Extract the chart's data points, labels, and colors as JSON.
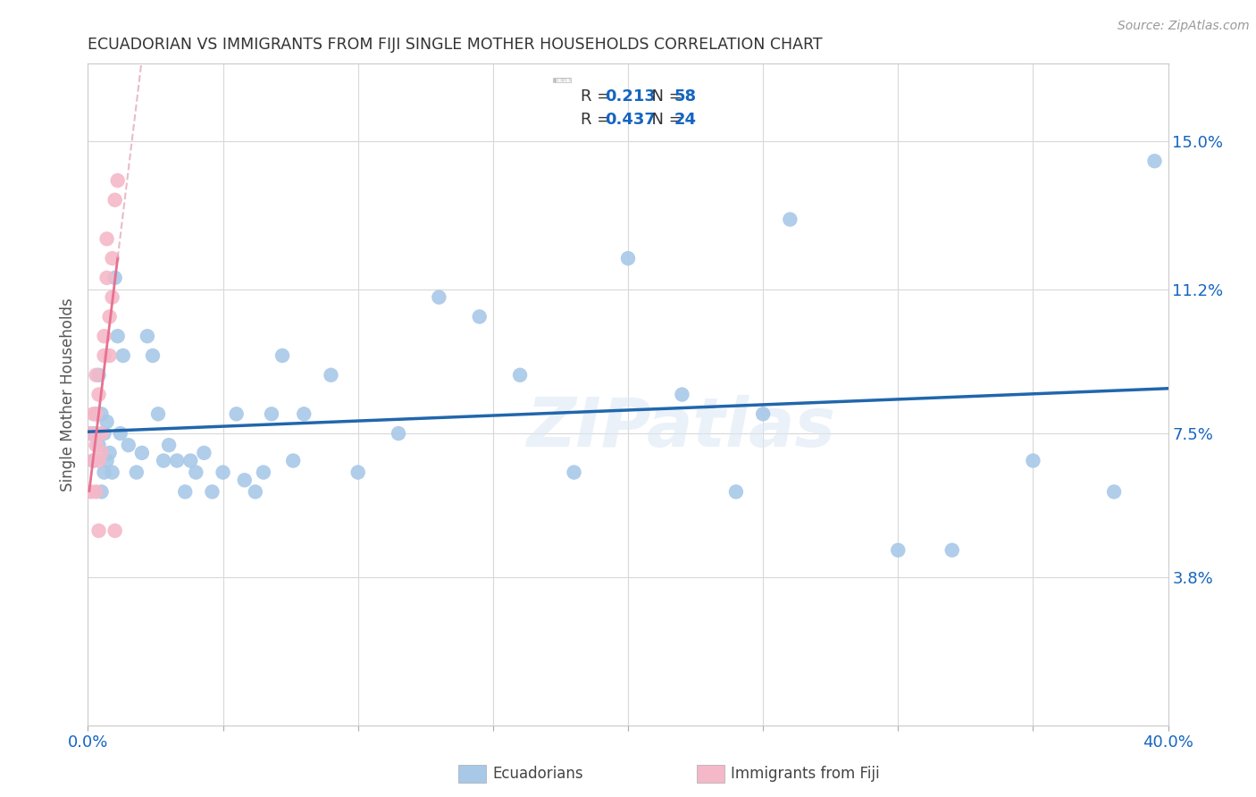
{
  "title": "ECUADORIAN VS IMMIGRANTS FROM FIJI SINGLE MOTHER HOUSEHOLDS CORRELATION CHART",
  "source": "Source: ZipAtlas.com",
  "ylabel": "Single Mother Households",
  "x_min": 0.0,
  "x_max": 0.4,
  "y_min": 0.0,
  "y_max": 0.17,
  "ecuadorians_R": "0.213",
  "ecuadorians_N": "58",
  "fiji_R": "0.437",
  "fiji_N": "24",
  "blue_scatter_color": "#a8c8e8",
  "pink_scatter_color": "#f4b8c8",
  "blue_line_color": "#2166ac",
  "pink_line_color": "#e87090",
  "legend_text_color": "#333333",
  "legend_value_color": "#1565c0",
  "legend_N_color": "#1565c0",
  "watermark": "ZIPatlas",
  "background_color": "#ffffff",
  "grid_color": "#d8d8d8",
  "x_ticks": [
    0.0,
    0.05,
    0.1,
    0.15,
    0.2,
    0.25,
    0.3,
    0.35,
    0.4
  ],
  "y_tick_vals": [
    0.038,
    0.075,
    0.112,
    0.15
  ],
  "y_tick_labels": [
    "3.8%",
    "7.5%",
    "11.2%",
    "15.0%"
  ],
  "eq_x": [
    0.001,
    0.002,
    0.002,
    0.003,
    0.004,
    0.004,
    0.005,
    0.005,
    0.006,
    0.006,
    0.007,
    0.007,
    0.008,
    0.009,
    0.01,
    0.011,
    0.012,
    0.013,
    0.015,
    0.018,
    0.02,
    0.022,
    0.024,
    0.026,
    0.028,
    0.03,
    0.033,
    0.036,
    0.038,
    0.04,
    0.043,
    0.046,
    0.05,
    0.055,
    0.058,
    0.062,
    0.065,
    0.068,
    0.072,
    0.076,
    0.08,
    0.09,
    0.1,
    0.115,
    0.13,
    0.145,
    0.16,
    0.18,
    0.2,
    0.22,
    0.24,
    0.26,
    0.3,
    0.32,
    0.35,
    0.38,
    0.395,
    0.25
  ],
  "eq_y": [
    0.075,
    0.075,
    0.068,
    0.08,
    0.072,
    0.09,
    0.06,
    0.08,
    0.065,
    0.075,
    0.068,
    0.078,
    0.07,
    0.065,
    0.115,
    0.1,
    0.075,
    0.095,
    0.072,
    0.065,
    0.07,
    0.1,
    0.095,
    0.08,
    0.068,
    0.072,
    0.068,
    0.06,
    0.068,
    0.065,
    0.07,
    0.06,
    0.065,
    0.08,
    0.063,
    0.06,
    0.065,
    0.08,
    0.095,
    0.068,
    0.08,
    0.09,
    0.065,
    0.075,
    0.11,
    0.105,
    0.09,
    0.065,
    0.12,
    0.085,
    0.06,
    0.13,
    0.045,
    0.045,
    0.068,
    0.06,
    0.145,
    0.08
  ],
  "fiji_x": [
    0.001,
    0.001,
    0.002,
    0.002,
    0.003,
    0.003,
    0.003,
    0.004,
    0.004,
    0.005,
    0.005,
    0.006,
    0.006,
    0.007,
    0.007,
    0.008,
    0.008,
    0.009,
    0.009,
    0.01,
    0.01,
    0.011,
    0.003,
    0.004
  ],
  "fiji_y": [
    0.06,
    0.075,
    0.068,
    0.08,
    0.072,
    0.09,
    0.08,
    0.068,
    0.085,
    0.07,
    0.075,
    0.095,
    0.1,
    0.115,
    0.125,
    0.105,
    0.095,
    0.11,
    0.12,
    0.135,
    0.05,
    0.14,
    0.06,
    0.05
  ]
}
